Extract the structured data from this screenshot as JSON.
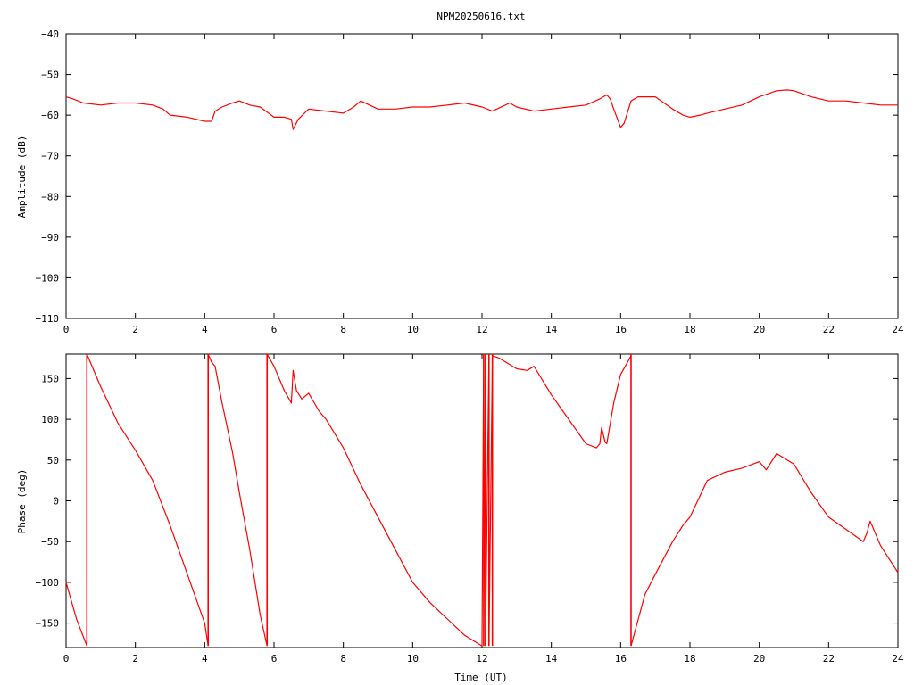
{
  "title": "NPM20250616.txt",
  "colors": {
    "trace": "#ff0000",
    "axis": "#000000",
    "background": "#ffffff"
  },
  "chart_data": [
    {
      "type": "line",
      "title": "NPM20250616.txt",
      "xlabel": "",
      "ylabel": "Amplitude (dB)",
      "xlim": [
        0,
        24
      ],
      "ylim": [
        -110,
        -40
      ],
      "xticks": [
        0,
        2,
        4,
        6,
        8,
        10,
        12,
        14,
        16,
        18,
        20,
        22,
        24
      ],
      "yticks": [
        -110,
        -100,
        -90,
        -80,
        -70,
        -60,
        -50,
        -40
      ],
      "xtick_labels": [
        "0",
        "2",
        "4",
        "6",
        "8",
        "10",
        "12",
        "14",
        "16",
        "18",
        "20",
        "22",
        "24"
      ],
      "ytick_labels": [
        "−110",
        "−100",
        "−90",
        "−80",
        "−70",
        "−60",
        "−50",
        "−40"
      ],
      "grid": false,
      "series": [
        {
          "x": [
            0,
            0.2,
            0.5,
            1,
            1.5,
            2,
            2.5,
            2.8,
            3,
            3.5,
            4,
            4.2,
            4.3,
            4.5,
            4.8,
            5,
            5.3,
            5.6,
            6,
            6.3,
            6.5,
            6.55,
            6.7,
            7,
            7.5,
            8,
            8.3,
            8.5,
            9,
            9.5,
            10,
            10.5,
            11,
            11.5,
            12,
            12.3,
            12.8,
            13,
            13.5,
            14,
            14.5,
            15,
            15.4,
            15.6,
            15.7,
            15.8,
            16,
            16.1,
            16.3,
            16.5,
            17,
            17.5,
            17.8,
            18,
            18.3,
            18.5,
            19,
            19.5,
            20,
            20.5,
            20.8,
            21,
            21.5,
            22,
            22.5,
            23,
            23.5,
            24
          ],
          "y": [
            -55.5,
            -56,
            -57,
            -57.5,
            -57,
            -57,
            -57.5,
            -58.5,
            -60,
            -60.5,
            -61.5,
            -61.5,
            -59,
            -58,
            -57,
            -56.5,
            -57.5,
            -58,
            -60.5,
            -60.5,
            -61,
            -63.5,
            -61,
            -58.5,
            -59,
            -59.5,
            -58,
            -56.5,
            -58.5,
            -58.5,
            -58,
            -58,
            -57.5,
            -57,
            -58,
            -59,
            -57,
            -58,
            -59,
            -58.5,
            -58,
            -57.5,
            -56,
            -55,
            -56,
            -58.5,
            -63,
            -62,
            -56.5,
            -55.5,
            -55.5,
            -58.5,
            -60,
            -60.5,
            -60,
            -59.5,
            -58.5,
            -57.5,
            -55.5,
            -54,
            -53.8,
            -54,
            -55.5,
            -56.5,
            -56.5,
            -57,
            -57.5,
            -57.5
          ]
        }
      ]
    },
    {
      "type": "line",
      "title": "",
      "xlabel": "Time (UT)",
      "ylabel": "Phase (deg)",
      "xlim": [
        0,
        24
      ],
      "ylim": [
        -180,
        180
      ],
      "xticks": [
        0,
        2,
        4,
        6,
        8,
        10,
        12,
        14,
        16,
        18,
        20,
        22,
        24
      ],
      "yticks": [
        -150,
        -100,
        -50,
        0,
        50,
        100,
        150
      ],
      "xtick_labels": [
        "0",
        "2",
        "4",
        "6",
        "8",
        "10",
        "12",
        "14",
        "16",
        "18",
        "20",
        "22",
        "24"
      ],
      "ytick_labels": [
        "−150",
        "−100",
        "−50",
        "0",
        "50",
        "100",
        "150"
      ],
      "grid": false,
      "series": [
        {
          "x": [
            0,
            0.3,
            0.6
          ],
          "y": [
            -100,
            -145,
            -178
          ]
        },
        {
          "x": [
            0.6,
            1,
            1.5,
            2,
            2.5,
            3,
            3.5,
            4,
            4.1
          ],
          "y": [
            180,
            140,
            95,
            62,
            25,
            -30,
            -90,
            -150,
            -178
          ]
        },
        {
          "x": [
            4.1,
            4.2,
            4.3,
            4.5,
            4.8,
            5,
            5.3,
            5.6,
            5.8
          ],
          "y": [
            180,
            170,
            165,
            120,
            60,
            10,
            -60,
            -140,
            -178
          ]
        },
        {
          "x": [
            5.8,
            6,
            6.3,
            6.5,
            6.55,
            6.65,
            6.8,
            7,
            7.3,
            7.5,
            8,
            8.5,
            9,
            9.5,
            10,
            10.5,
            11,
            11.5,
            12
          ],
          "y": [
            180,
            165,
            135,
            120,
            160,
            135,
            125,
            132,
            110,
            100,
            65,
            20,
            -20,
            -60,
            -100,
            -125,
            -145,
            -165,
            -178
          ]
        },
        {
          "x": [
            12,
            12.05
          ],
          "y": [
            -178,
            180
          ]
        },
        {
          "x": [
            12.05,
            12.1
          ],
          "y": [
            -178,
            180
          ]
        },
        {
          "x": [
            12.1,
            12.2
          ],
          "y": [
            -178,
            180
          ]
        },
        {
          "x": [
            12.2,
            12.3
          ],
          "y": [
            -178,
            180
          ]
        },
        {
          "x": [
            12.3,
            12.5,
            13,
            13.3,
            13.5,
            14,
            14.5,
            15,
            15.3,
            15.4,
            15.45,
            15.55,
            15.6,
            15.8,
            16,
            16.2,
            16.3
          ],
          "y": [
            178,
            175,
            162,
            160,
            165,
            130,
            100,
            70,
            65,
            70,
            90,
            72,
            70,
            120,
            155,
            170,
            178
          ]
        },
        {
          "x": [
            16.3,
            16.7,
            17,
            17.5,
            17.8,
            18,
            18.5,
            19,
            19.5,
            20,
            20.2,
            20.5,
            21,
            21.5,
            22,
            22.5,
            23,
            23.1,
            23.2,
            23.5,
            24
          ],
          "y": [
            -178,
            -115,
            -90,
            -50,
            -30,
            -20,
            25,
            35,
            40,
            48,
            38,
            58,
            45,
            10,
            -20,
            -35,
            -50,
            -40,
            -25,
            -55,
            -88
          ]
        }
      ],
      "wraps": [
        0.6,
        4.1,
        5.8,
        12.05,
        12.1,
        12.2,
        12.3,
        16.3
      ]
    }
  ]
}
